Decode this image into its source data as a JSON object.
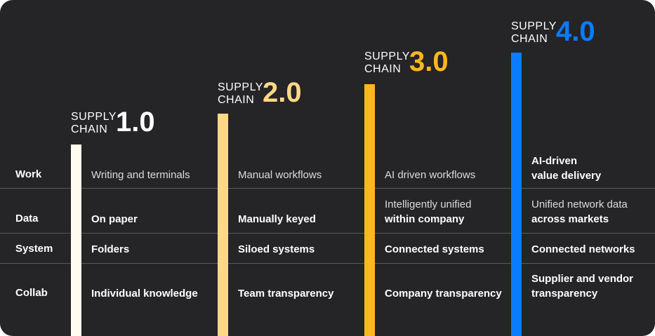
{
  "stages": [
    {
      "line1": "SUPPLY",
      "line2": "CHAIN",
      "version": "1.0",
      "color": "#fffbef"
    },
    {
      "line1": "SUPPLY",
      "line2": "CHAIN",
      "version": "2.0",
      "color": "#ffd886"
    },
    {
      "line1": "SUPPLY",
      "line2": "CHAIN",
      "version": "3.0",
      "color": "#ffb71e"
    },
    {
      "line1": "SUPPLY",
      "line2": "CHAIN",
      "version": "4.0",
      "color": "#0a7cff"
    }
  ],
  "rows": {
    "work": {
      "label": "Work",
      "cells": [
        [
          "Writing  and terminals"
        ],
        [
          "Manual workflows"
        ],
        [
          "AI driven workflows"
        ],
        [
          "AI-driven",
          "value delivery"
        ]
      ]
    },
    "data": {
      "label": "Data",
      "cells": [
        [
          "On paper"
        ],
        [
          "Manually keyed"
        ],
        [
          "Intelligently unified",
          "within company"
        ],
        [
          "Unified network data",
          "across markets"
        ]
      ]
    },
    "system": {
      "label": "System",
      "cells": [
        [
          "Folders"
        ],
        [
          "Siloed systems"
        ],
        [
          "Connected systems"
        ],
        [
          "Connected networks"
        ]
      ]
    },
    "collab": {
      "label": "Collab",
      "cells": [
        [
          "Individual knowledge"
        ],
        [
          "Team transparency"
        ],
        [
          "Company  transparency"
        ],
        [
          "Supplier and vendor",
          "transparency"
        ]
      ]
    }
  }
}
